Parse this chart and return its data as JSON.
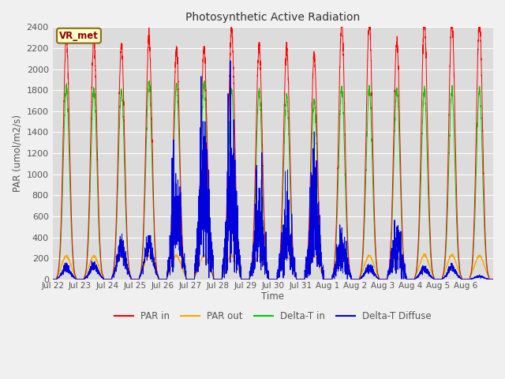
{
  "title": "Photosynthetic Active Radiation",
  "ylabel": "PAR (umol/m2/s)",
  "xlabel": "Time",
  "annotation": "VR_met",
  "ylim": [
    0,
    2400
  ],
  "background_color": "#f0f0f0",
  "plot_bg_color": "#dcdcdc",
  "legend_labels": [
    "PAR in",
    "PAR out",
    "Delta-T in",
    "Delta-T Diffuse"
  ],
  "legend_colors": [
    "#ff0000",
    "#ffa500",
    "#00cc00",
    "#0000dd"
  ],
  "line_colors": {
    "par_in": "#ff0000",
    "par_out": "#ffa500",
    "delta_t_in": "#00cc00",
    "delta_t_diffuse": "#0000dd"
  },
  "days": [
    "Jul 22",
    "Jul 23",
    "Jul 24",
    "Jul 25",
    "Jul 26",
    "Jul 27",
    "Jul 28",
    "Jul 29",
    "Jul 30",
    "Jul 31",
    "Aug 1",
    "Aug 2",
    "Aug 3",
    "Aug 4",
    "Aug 5",
    "Aug 6"
  ],
  "num_days": 16,
  "points_per_day": 288,
  "par_in_peaks": [
    2300,
    2280,
    2230,
    2300,
    2200,
    2200,
    2380,
    2230,
    2200,
    2130,
    2450,
    2450,
    2260,
    2440,
    2480,
    2450
  ],
  "par_out_peaks": [
    220,
    220,
    220,
    230,
    225,
    225,
    230,
    225,
    225,
    220,
    225,
    225,
    220,
    230,
    230,
    225
  ],
  "delta_t_in_peaks": [
    1820,
    1800,
    1790,
    1870,
    1840,
    1860,
    1790,
    1790,
    1740,
    1700,
    1820,
    1810,
    1800,
    1800,
    1790,
    1790
  ],
  "delta_t_diffuse_peaks": [
    110,
    130,
    310,
    340,
    580,
    900,
    850,
    470,
    420,
    600,
    270,
    110,
    310,
    100,
    110,
    30
  ],
  "cloudy_days": [
    4,
    5,
    6,
    7,
    8,
    9,
    10,
    12
  ],
  "grid_color": "#ffffff",
  "tick_label_color": "#555555",
  "title_color": "#333333",
  "figsize": [
    6.4,
    4.8
  ],
  "dpi": 100
}
